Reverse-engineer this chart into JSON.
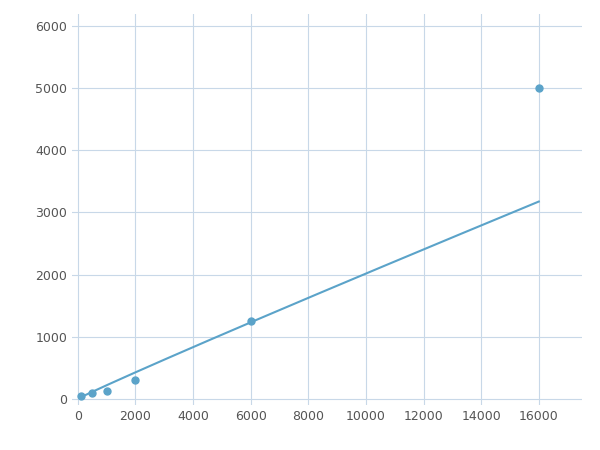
{
  "x": [
    125,
    500,
    1000,
    2000,
    6000,
    16000
  ],
  "y": [
    50,
    100,
    125,
    300,
    1250,
    5000
  ],
  "line_color": "#5ba3c9",
  "marker_color": "#5ba3c9",
  "marker_size": 5,
  "linewidth": 1.5,
  "xlim": [
    -200,
    17500
  ],
  "ylim": [
    -100,
    6200
  ],
  "xticks": [
    0,
    2000,
    4000,
    6000,
    8000,
    10000,
    12000,
    14000,
    16000
  ],
  "yticks": [
    0,
    1000,
    2000,
    3000,
    4000,
    5000,
    6000
  ],
  "grid": true,
  "background_color": "#ffffff",
  "grid_color": "#c8d8e8",
  "grid_linewidth": 0.8
}
